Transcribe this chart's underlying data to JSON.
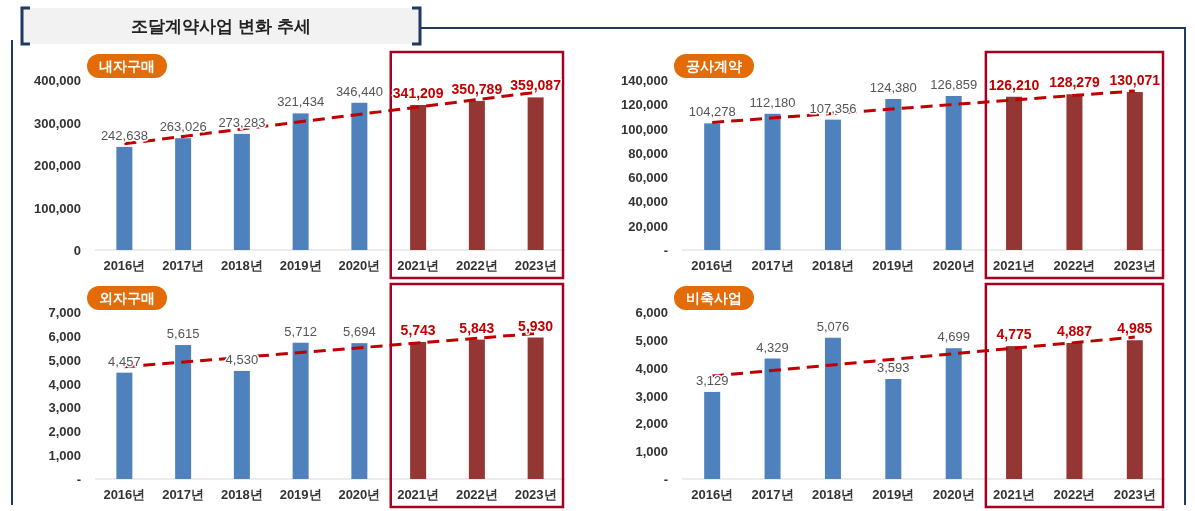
{
  "chart_data": [
    {
      "type": "other",
      "title": "조달계약사업 변화 추세"
    },
    {
      "type": "bar",
      "title": "내자구매",
      "categories": [
        "2016년",
        "2017년",
        "2018년",
        "2019년",
        "2020년",
        "2021년",
        "2022년",
        "2023년"
      ],
      "ylim": [
        0,
        400000
      ],
      "yticks": [
        0,
        {
          "value": 100000,
          "label": "100,000"
        },
        {
          "value": 200000,
          "label": "200,000"
        },
        {
          "value": 300000,
          "label": "300,000"
        },
        {
          "value": 400000,
          "label": "400,000"
        }
      ],
      "grid": false,
      "series": [
        {
          "type": "bar",
          "colors": [
            "#4f81bd",
            "#4f81bd",
            "#4f81bd",
            "#4f81bd",
            "#4f81bd",
            "#943634",
            "#943634",
            "#943634"
          ],
          "values": [
            242638,
            263026,
            273283,
            321434,
            346440,
            341209,
            350789,
            359087
          ],
          "value_labels": [
            "242,638",
            "263,026",
            "273,283",
            "321,434",
            "346,440",
            "341,209",
            "350,789",
            "359,087"
          ]
        },
        {
          "type": "line",
          "x": [
            "2016년",
            "2023년"
          ],
          "values": [
            250000,
            371000
          ],
          "color": "#c00000",
          "line_style": "dashed"
        }
      ]
    },
    {
      "type": "bar",
      "title": "공사계약",
      "categories": [
        "2016년",
        "2017년",
        "2018년",
        "2019년",
        "2020년",
        "2021년",
        "2022년",
        "2023년"
      ],
      "ylim": [
        0,
        140000
      ],
      "yticks": [
        {
          "value": 0,
          "label": "-"
        },
        {
          "value": 20000,
          "label": "20,000"
        },
        {
          "value": 40000,
          "label": "40,000"
        },
        {
          "value": 60000,
          "label": "60,000"
        },
        {
          "value": 80000,
          "label": "80,000"
        },
        {
          "value": 100000,
          "label": "100,000"
        },
        {
          "value": 120000,
          "label": "120,000"
        },
        {
          "value": 140000,
          "label": "140,000"
        }
      ],
      "grid": false,
      "series": [
        {
          "type": "bar",
          "colors": [
            "#4f81bd",
            "#4f81bd",
            "#4f81bd",
            "#4f81bd",
            "#4f81bd",
            "#943634",
            "#943634",
            "#943634"
          ],
          "values": [
            104278,
            112180,
            107356,
            124380,
            126859,
            126210,
            128279,
            130071
          ],
          "value_labels": [
            "104,278",
            "112,180",
            "107,356",
            "124,380",
            "126,859",
            "126,210",
            "128,279",
            "130,071"
          ]
        },
        {
          "type": "line",
          "x": [
            "2016년",
            "2023년"
          ],
          "values": [
            105000,
            131000
          ],
          "color": "#c00000",
          "line_style": "dashed"
        }
      ]
    },
    {
      "type": "bar",
      "title": "외자구매",
      "categories": [
        "2016년",
        "2017년",
        "2018년",
        "2019년",
        "2020년",
        "2021년",
        "2022년",
        "2023년"
      ],
      "ylim": [
        0,
        7000
      ],
      "yticks": [
        {
          "value": 0,
          "label": "-"
        },
        {
          "value": 1000,
          "label": "1,000"
        },
        {
          "value": 2000,
          "label": "2,000"
        },
        {
          "value": 3000,
          "label": "3,000"
        },
        {
          "value": 4000,
          "label": "4,000"
        },
        {
          "value": 5000,
          "label": "5,000"
        },
        {
          "value": 6000,
          "label": "6,000"
        },
        {
          "value": 7000,
          "label": "7,000"
        }
      ],
      "grid": false,
      "series": [
        {
          "type": "bar",
          "colors": [
            "#4f81bd",
            "#4f81bd",
            "#4f81bd",
            "#4f81bd",
            "#4f81bd",
            "#943634",
            "#943634",
            "#943634"
          ],
          "values": [
            4457,
            5615,
            4530,
            5712,
            5694,
            5743,
            5843,
            5930
          ],
          "value_labels": [
            "4,457",
            "5,615",
            "4,530",
            "5,712",
            "5,694",
            "5,743",
            "5,843",
            "5,930"
          ]
        },
        {
          "type": "line",
          "x": [
            "2016년",
            "2023년"
          ],
          "values": [
            4700,
            6100
          ],
          "color": "#c00000",
          "line_style": "dashed"
        }
      ]
    },
    {
      "type": "bar",
      "title": "비축사업",
      "categories": [
        "2016년",
        "2017년",
        "2018년",
        "2019년",
        "2020년",
        "2021년",
        "2022년",
        "2023년"
      ],
      "ylim": [
        0,
        6000
      ],
      "yticks": [
        {
          "value": 0,
          "label": "-"
        },
        {
          "value": 1000,
          "label": "1,000"
        },
        {
          "value": 2000,
          "label": "2,000"
        },
        {
          "value": 3000,
          "label": "3,000"
        },
        {
          "value": 4000,
          "label": "4,000"
        },
        {
          "value": 5000,
          "label": "5,000"
        },
        {
          "value": 6000,
          "label": "6,000"
        }
      ],
      "grid": false,
      "series": [
        {
          "type": "bar",
          "colors": [
            "#4f81bd",
            "#4f81bd",
            "#4f81bd",
            "#4f81bd",
            "#4f81bd",
            "#943634",
            "#943634",
            "#943634"
          ],
          "values": [
            3129,
            4329,
            5076,
            3593,
            4699,
            4775,
            4887,
            4985
          ],
          "value_labels": [
            "3,129",
            "4,329",
            "5,076",
            "3,593",
            "4,699",
            "4,775",
            "4,887",
            "4,985"
          ]
        },
        {
          "type": "line",
          "x": [
            "2016년",
            "2023년"
          ],
          "values": [
            3700,
            5100
          ],
          "color": "#c00000",
          "line_style": "dashed"
        }
      ]
    }
  ]
}
